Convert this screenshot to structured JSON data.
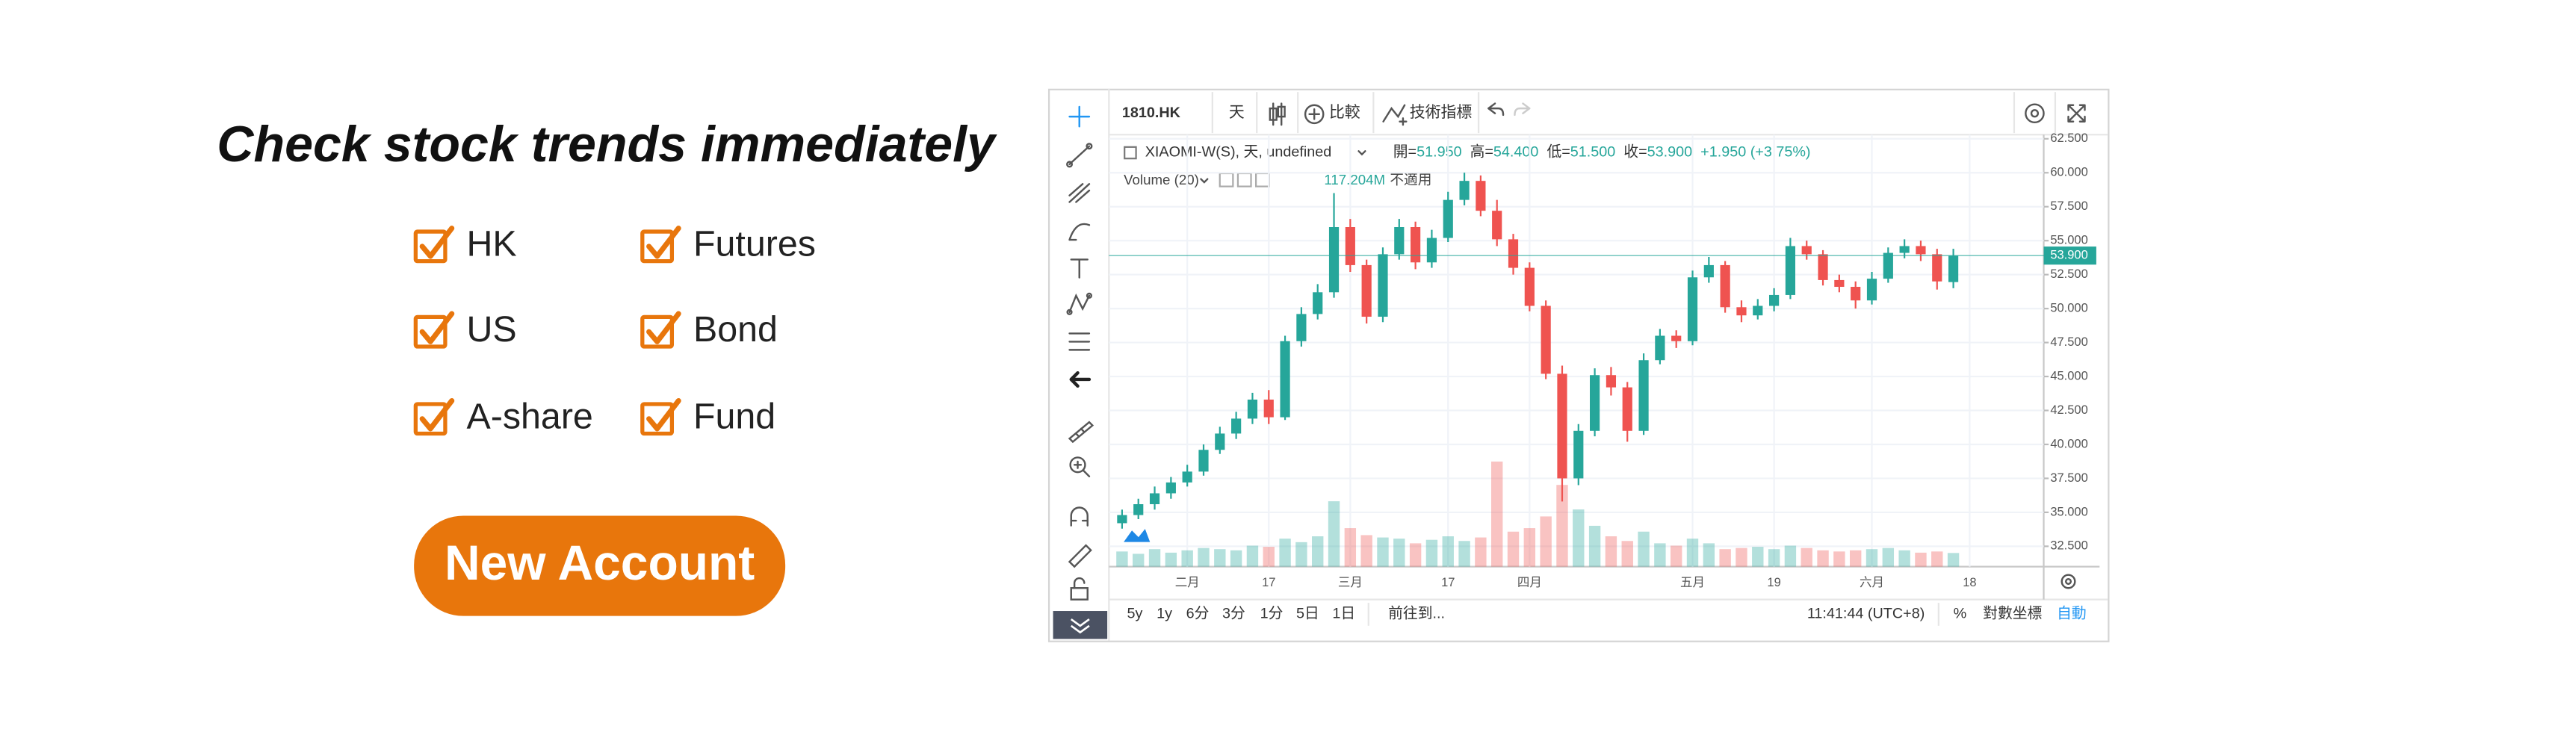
{
  "headline": "Check stock trends immediately",
  "markets": [
    "HK",
    "Futures",
    "US",
    "Bond",
    "A-share",
    "Fund"
  ],
  "button": "New Account",
  "widget": {
    "toolbar": {
      "symbol": "1810.HK",
      "interval": "天",
      "compare": "比較",
      "indicators": "技術指標"
    },
    "legend": {
      "name": "XIAOMI-W(S), 天, undefined",
      "ohlc": [
        {
          "label": "開=",
          "value": "51.950"
        },
        {
          "label": "高=",
          "value": "54.400"
        },
        {
          "label": "低=",
          "value": "51.500"
        },
        {
          "label": "收=",
          "value": "53.900"
        }
      ],
      "change": "+1.950 (+3.75%)",
      "volume_name": "Volume (20)",
      "volume_value": "117.204M",
      "volume_na": "不適用"
    },
    "chart": {
      "type": "candlestick",
      "up_color": "#26a69a",
      "down_color": "#ef5350",
      "ylim": [
        31.0,
        62.8
      ],
      "yticks": [
        {
          "value": 32.5,
          "label": "32.500"
        },
        {
          "value": 35,
          "label": "35.000"
        },
        {
          "value": 37.5,
          "label": "37.500"
        },
        {
          "value": 40,
          "label": "40.000"
        },
        {
          "value": 42.5,
          "label": "42.500"
        },
        {
          "value": 45,
          "label": "45.000"
        },
        {
          "value": 47.5,
          "label": "47.500"
        },
        {
          "value": 50,
          "label": "50.000"
        },
        {
          "value": 52.5,
          "label": "52.500"
        },
        {
          "value": 55,
          "label": "55.000"
        },
        {
          "value": 57.5,
          "label": "57.500"
        },
        {
          "value": 60,
          "label": "60.000"
        },
        {
          "value": 62.5,
          "label": "62.500"
        }
      ],
      "xticks": [
        {
          "value": 4,
          "label": "二月"
        },
        {
          "value": 9,
          "label": "17"
        },
        {
          "value": 14,
          "label": "三月"
        },
        {
          "value": 20,
          "label": "17"
        },
        {
          "value": 25,
          "label": "四月"
        },
        {
          "value": 35,
          "label": "五月"
        },
        {
          "value": 40,
          "label": "19"
        },
        {
          "value": 46,
          "label": "六月"
        },
        {
          "value": 52,
          "label": "18"
        }
      ],
      "last_price": {
        "value": 53.9,
        "label": "53.900"
      },
      "candles": [
        [
          34.2,
          35.2,
          33.8,
          34.8,
          130
        ],
        [
          34.8,
          36.0,
          34.5,
          35.6,
          110
        ],
        [
          35.6,
          36.9,
          35.2,
          36.4,
          150
        ],
        [
          36.4,
          37.6,
          36.0,
          37.2,
          120
        ],
        [
          37.2,
          38.5,
          36.9,
          38.0,
          140
        ],
        [
          38.0,
          40.0,
          37.7,
          39.6,
          160
        ],
        [
          39.6,
          41.3,
          39.3,
          40.8,
          150
        ],
        [
          40.8,
          42.4,
          40.4,
          41.9,
          140
        ],
        [
          41.9,
          43.8,
          41.5,
          43.3,
          180
        ],
        [
          43.3,
          44.0,
          41.5,
          42.0,
          170
        ],
        [
          42.0,
          48.0,
          41.8,
          47.6,
          240
        ],
        [
          47.6,
          50.1,
          47.2,
          49.6,
          210
        ],
        [
          49.6,
          51.8,
          49.2,
          51.2,
          260
        ],
        [
          51.2,
          58.5,
          50.8,
          56.0,
          560
        ],
        [
          56.0,
          56.6,
          52.7,
          53.2,
          330
        ],
        [
          53.2,
          53.6,
          48.9,
          49.4,
          270
        ],
        [
          49.4,
          54.5,
          49.0,
          54.0,
          250
        ],
        [
          54.0,
          56.6,
          53.6,
          56.0,
          240
        ],
        [
          56.0,
          56.4,
          52.9,
          53.4,
          200
        ],
        [
          53.4,
          55.8,
          53.0,
          55.2,
          230
        ],
        [
          55.2,
          58.6,
          54.9,
          58.0,
          260
        ],
        [
          58.0,
          60.0,
          57.6,
          59.4,
          220
        ],
        [
          59.4,
          59.8,
          56.8,
          57.2,
          250
        ],
        [
          57.2,
          58.0,
          54.6,
          55.1,
          900
        ],
        [
          55.1,
          55.5,
          52.5,
          53.0,
          300
        ],
        [
          53.0,
          53.4,
          49.8,
          50.2,
          330
        ],
        [
          50.2,
          50.6,
          44.8,
          45.2,
          430
        ],
        [
          45.2,
          45.8,
          35.8,
          37.5,
          700
        ],
        [
          37.5,
          41.5,
          37.0,
          41.0,
          490
        ],
        [
          41.0,
          45.6,
          40.6,
          45.1,
          350
        ],
        [
          45.1,
          45.7,
          43.6,
          44.2,
          260
        ],
        [
          44.2,
          44.6,
          40.2,
          41.0,
          220
        ],
        [
          41.0,
          46.7,
          40.7,
          46.2,
          300
        ],
        [
          46.2,
          48.5,
          45.9,
          48.0,
          200
        ],
        [
          48.0,
          48.4,
          47.1,
          47.6,
          180
        ],
        [
          47.6,
          52.8,
          47.3,
          52.3,
          240
        ],
        [
          52.3,
          53.8,
          51.9,
          53.2,
          200
        ],
        [
          53.2,
          53.5,
          49.7,
          50.1,
          150
        ],
        [
          50.1,
          50.6,
          49.0,
          49.5,
          160
        ],
        [
          49.5,
          50.7,
          49.2,
          50.2,
          170
        ],
        [
          50.2,
          51.5,
          49.8,
          51.0,
          150
        ],
        [
          51.0,
          55.2,
          50.7,
          54.6,
          180
        ],
        [
          54.6,
          55.0,
          53.6,
          54.0,
          160
        ],
        [
          54.0,
          54.3,
          51.7,
          52.1,
          140
        ],
        [
          52.1,
          52.5,
          51.2,
          51.6,
          130
        ],
        [
          51.6,
          52.0,
          50.0,
          50.6,
          140
        ],
        [
          50.6,
          52.7,
          50.3,
          52.2,
          150
        ],
        [
          52.2,
          54.5,
          51.9,
          54.1,
          160
        ],
        [
          54.1,
          55.1,
          53.7,
          54.6,
          140
        ],
        [
          54.6,
          55.0,
          53.5,
          54.0,
          120
        ],
        [
          54.0,
          54.4,
          51.4,
          52.0,
          130
        ],
        [
          51.95,
          54.4,
          51.5,
          53.9,
          117.204
        ]
      ]
    },
    "bottom_bar": {
      "ranges": [
        "5y",
        "1y",
        "6分",
        "3分",
        "1分",
        "5日",
        "1日"
      ],
      "goto": "前往到...",
      "time": "11:41:44 (UTC+8)",
      "percent": "%",
      "log": "對數坐標",
      "auto": "自動"
    }
  }
}
